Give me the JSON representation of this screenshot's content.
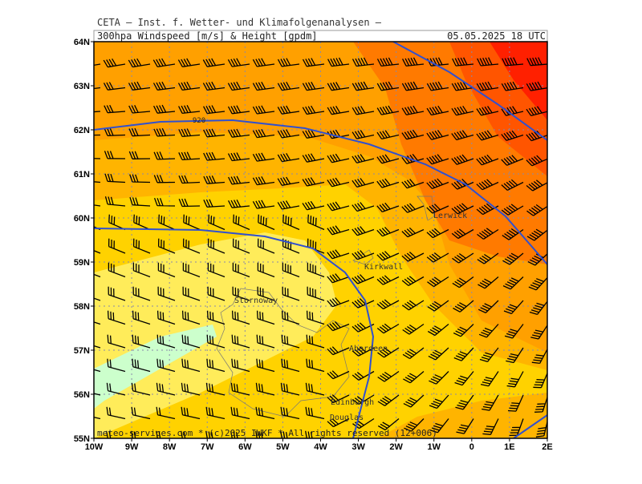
{
  "header": {
    "title": "CETA – Inst. f. Wetter- und Klimafolgenanalysen –",
    "parameter": "300hpa Windspeed [m/s] & Height [gpdm]",
    "valid_time": "05.05.2025 18 UTC"
  },
  "map": {
    "lat_labels": [
      "55N",
      "56N",
      "57N",
      "58N",
      "59N",
      "60N",
      "61N",
      "62N",
      "63N",
      "64N"
    ],
    "lon_labels": [
      "10W",
      "9W",
      "8W",
      "7W",
      "6W",
      "5W",
      "4W",
      "3W",
      "2W",
      "1W",
      "0",
      "1E",
      "2E"
    ],
    "cities": [
      "Lerwick",
      "Kirkwall",
      "Stornoway",
      "Aberdeen",
      "Edinburgh",
      "Douglas"
    ],
    "contour_labels": [
      "920"
    ],
    "footer": "meteo-services.com * (c)2025 IWKF * All rights reserved (12+006)"
  }
}
